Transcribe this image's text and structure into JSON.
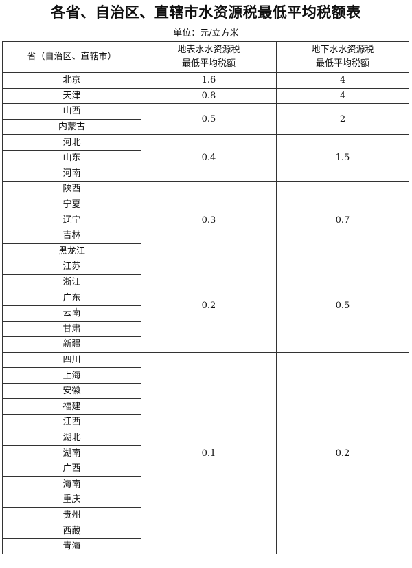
{
  "title": "各省、自治区、直辖市水资源税最低平均税额表",
  "unit": "单位：元/立方米",
  "headers": {
    "province": "省（自治区、直辖市）",
    "surface_line1": "地表水水资源税",
    "surface_line2": "最低平均税额",
    "ground_line1": "地下水水资源税",
    "ground_line2": "最低平均税额"
  },
  "groups": [
    {
      "provinces": [
        "北京"
      ],
      "surface": "1.6",
      "ground": "4"
    },
    {
      "provinces": [
        "天津"
      ],
      "surface": "0.8",
      "ground": "4"
    },
    {
      "provinces": [
        "山西",
        "内蒙古"
      ],
      "surface": "0.5",
      "ground": "2"
    },
    {
      "provinces": [
        "河北",
        "山东",
        "河南"
      ],
      "surface": "0.4",
      "ground": "1.5"
    },
    {
      "provinces": [
        "陕西",
        "宁夏",
        "辽宁",
        "吉林",
        "黑龙江"
      ],
      "surface": "0.3",
      "ground": "0.7"
    },
    {
      "provinces": [
        "江苏",
        "浙江",
        "广东",
        "云南",
        "甘肃",
        "新疆"
      ],
      "surface": "0.2",
      "ground": "0.5"
    },
    {
      "provinces": [
        "四川",
        "上海",
        "安徽",
        "福建",
        "江西",
        "湖北",
        "湖南",
        "广西",
        "海南",
        "重庆",
        "贵州",
        "西藏",
        "青海"
      ],
      "surface": "0.1",
      "ground": "0.2"
    }
  ]
}
